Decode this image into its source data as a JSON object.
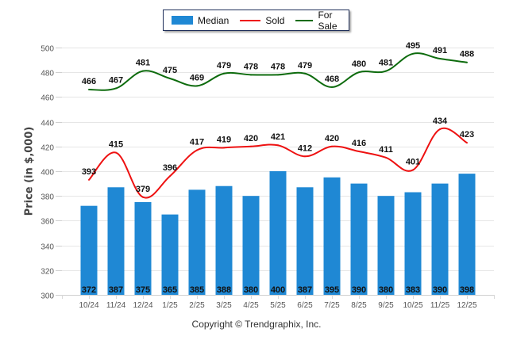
{
  "chart_data": {
    "type": "bar",
    "title": "",
    "xlabel": "",
    "ylabel": "Price (in $,000)",
    "ylim": [
      300,
      500
    ],
    "yticks": [
      300,
      320,
      340,
      360,
      380,
      400,
      420,
      440,
      460,
      480,
      500
    ],
    "grid": true,
    "legend_position": "top-center",
    "categories": [
      "10/24",
      "11/24",
      "12/24",
      "1/25",
      "2/25",
      "3/25",
      "4/25",
      "5/25",
      "6/25",
      "7/25",
      "8/25",
      "9/25",
      "10/25",
      "11/25",
      "12/25"
    ],
    "series": [
      {
        "name": "Median",
        "type": "bar",
        "color": "#1f88d4",
        "values": [
          372,
          387,
          375,
          365,
          385,
          388,
          380,
          400,
          387,
          395,
          390,
          380,
          383,
          390,
          398
        ]
      },
      {
        "name": "Sold",
        "type": "line",
        "color": "#ee1111",
        "values": [
          393,
          415,
          379,
          396,
          417,
          419,
          420,
          421,
          412,
          420,
          416,
          411,
          401,
          434,
          423
        ]
      },
      {
        "name": "For Sale",
        "type": "line",
        "color": "#0d6b0d",
        "values": [
          466,
          467,
          481,
          475,
          469,
          479,
          478,
          478,
          479,
          468,
          480,
          481,
          495,
          491,
          488
        ]
      }
    ]
  },
  "legend": {
    "items": [
      {
        "label": "Median",
        "color": "#1f88d4"
      },
      {
        "label": "Sold",
        "color": "#ee1111"
      },
      {
        "label": "For Sale",
        "color": "#0d6b0d"
      }
    ]
  },
  "footer": {
    "copyright": "Copyright © Trendgraphix, Inc."
  }
}
